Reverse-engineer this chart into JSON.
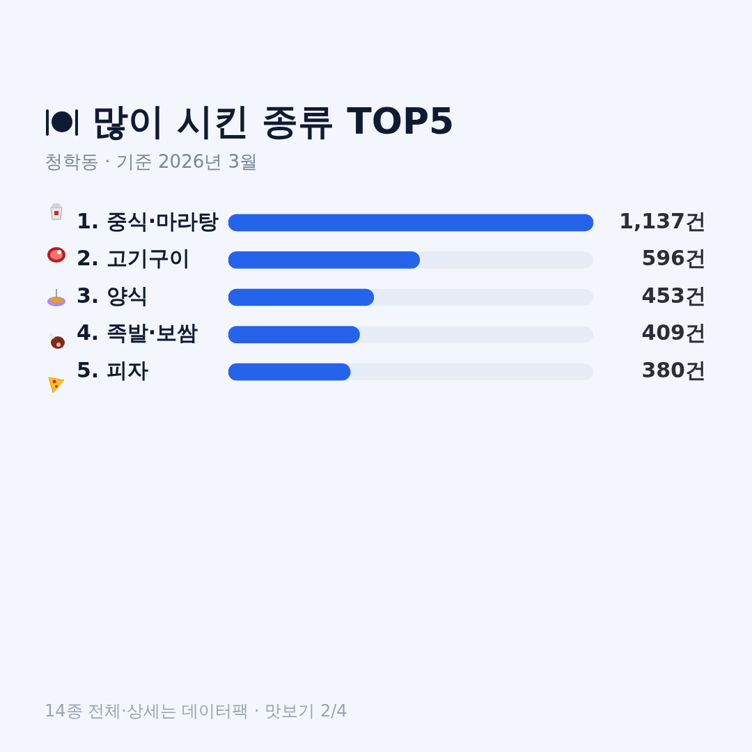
{
  "chart_data": {
    "type": "bar",
    "orientation": "horizontal",
    "title": "많이 시킨 종류 TOP5",
    "subtitle": "청학동 · 기준 2026년 3월",
    "categories": [
      "1. 중식·마라탕",
      "2. 고기구이",
      "3. 양식",
      "4. 족발·보쌈",
      "5. 피자"
    ],
    "values": [
      1137,
      596,
      453,
      409,
      380
    ],
    "value_labels": [
      "1,137건",
      "596건",
      "453건",
      "409건",
      "380건"
    ],
    "color": "#2563eb",
    "grid": false,
    "legend": false,
    "tick_labels": "y",
    "annotations": [
      "14종 전체·상세는 데이터팩 · 맛보기 2/4"
    ]
  }
}
